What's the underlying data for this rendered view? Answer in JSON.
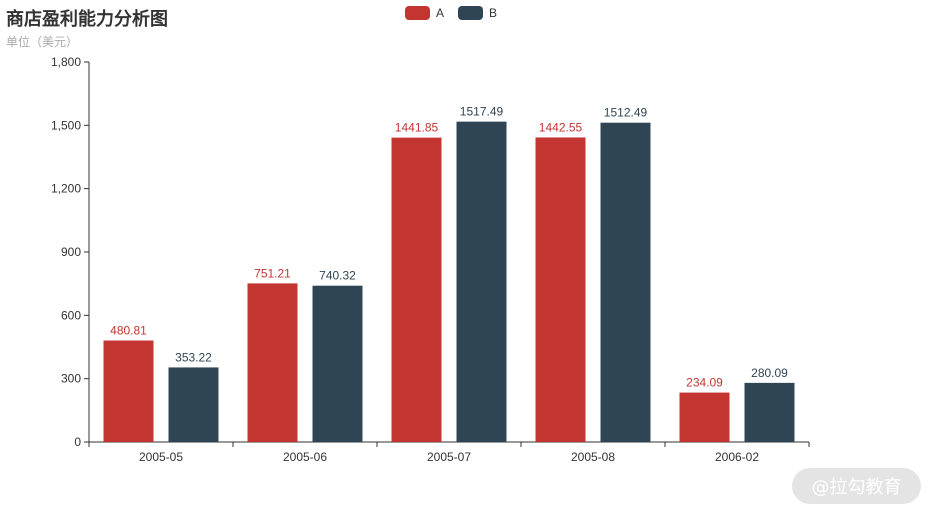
{
  "chart_data": {
    "type": "bar",
    "title": "商店盈利能力分析图",
    "subtitle": "单位（美元）",
    "categories": [
      "2005-05",
      "2005-06",
      "2005-07",
      "2005-08",
      "2006-02"
    ],
    "series": [
      {
        "name": "A",
        "color": "#c23531",
        "values": [
          480.81,
          751.21,
          1441.85,
          1442.55,
          234.09
        ]
      },
      {
        "name": "B",
        "color": "#2f4554",
        "values": [
          353.22,
          740.32,
          1517.49,
          1512.49,
          280.09
        ]
      }
    ],
    "ylim": [
      0,
      1800
    ],
    "yticks": [
      0,
      300,
      600,
      900,
      1200,
      1500,
      1800
    ],
    "ytick_labels": [
      "0",
      "300",
      "600",
      "900",
      "1,200",
      "1,500",
      "1,800"
    ],
    "grid": false,
    "legend_position": "top-center"
  },
  "watermark": "@拉勾教育"
}
